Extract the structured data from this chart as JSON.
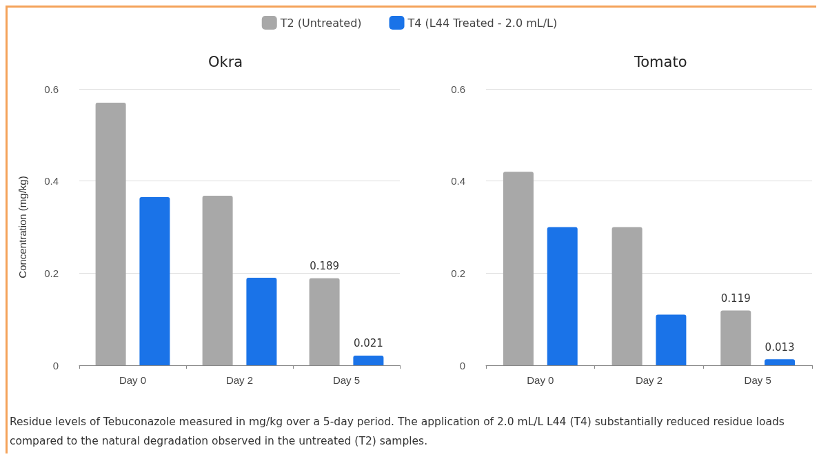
{
  "chart_data": [
    {
      "type": "bar",
      "title": "Okra",
      "ylabel": "Concentration (mg/kg)",
      "categories": [
        "Day 0",
        "Day 2",
        "Day 5"
      ],
      "series": [
        {
          "name": "T2 (Untreated)",
          "color": "#a8a8a8",
          "values": [
            0.57,
            0.368,
            0.189
          ],
          "value_labels": [
            null,
            null,
            "0.189"
          ]
        },
        {
          "name": "T4 (L44 Treated - 2.0 mL/L)",
          "color": "#1a73e8",
          "values": [
            0.365,
            0.19,
            0.021
          ],
          "value_labels": [
            null,
            null,
            "0.021"
          ]
        }
      ],
      "ylim": [
        0,
        0.6
      ],
      "yticks": [
        {
          "value": 0,
          "label": "0"
        },
        0.2,
        0.4,
        0.6
      ],
      "grid": "y",
      "legend": "top",
      "annotations": [
        "Residue levels of Tebuconazole measured in mg/kg over a 5-day period. The application of 2.0 mL/L L44 (T4) substantially reduced residue loads compared to the natural degradation observed in the untreated (T2) samples."
      ]
    },
    {
      "type": "bar",
      "title": "Tomato",
      "categories": [
        "Day 0",
        "Day 2",
        "Day 5"
      ],
      "series": [
        {
          "color": "#a8a8a8",
          "values": [
            0.42,
            0.3,
            0.119
          ],
          "value_labels": [
            null,
            null,
            "0.119"
          ]
        },
        {
          "color": "#1a73e8",
          "values": [
            0.3,
            0.11,
            0.013
          ],
          "value_labels": [
            null,
            null,
            "0.013"
          ]
        }
      ],
      "ylim": [
        0,
        0.6
      ],
      "yticks": [
        {
          "value": 0,
          "label": "0"
        },
        0.2,
        0.4,
        0.6
      ],
      "grid": "y",
      "legend": false
    }
  ]
}
